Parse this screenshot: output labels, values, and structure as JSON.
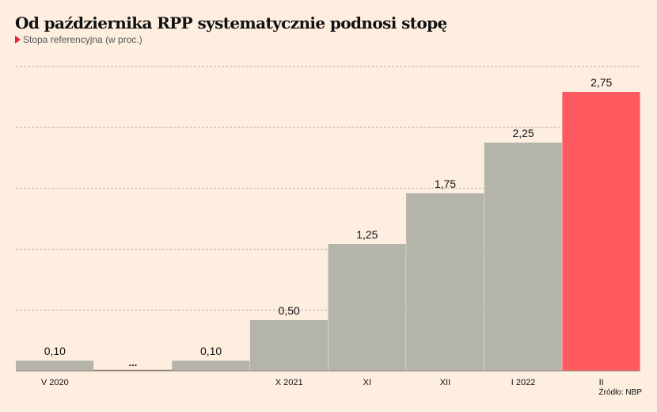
{
  "header": {
    "title": "Od października RPP systematycznie podnosi stopę",
    "subtitle": "Stopa referencyjna (w proc.)"
  },
  "source": "Źródło: NBP",
  "colors": {
    "bar": "#b4b4aa",
    "highlight": "#ff5a5f",
    "grid": "#b9b0a6"
  },
  "chart_data": {
    "type": "bar",
    "title": "Od października RPP systematycznie podnosi stopę",
    "subtitle": "Stopa referencyjna (w proc.)",
    "xlabel": "",
    "ylabel": "",
    "ylim": [
      0,
      3.0
    ],
    "gridlines": [
      0.6,
      1.2,
      1.8,
      2.4,
      3.0
    ],
    "grid": true,
    "categories": [
      "V 2020",
      "...",
      "",
      "X 2021",
      "XI",
      "XII",
      "I 2022",
      "II"
    ],
    "values": [
      0.1,
      null,
      0.1,
      0.5,
      1.25,
      1.75,
      2.25,
      2.75
    ],
    "labels": [
      "0,10",
      "...",
      "0,10",
      "0,50",
      "1,25",
      "1,75",
      "2,25",
      "2,75"
    ],
    "highlight_index": 7
  }
}
